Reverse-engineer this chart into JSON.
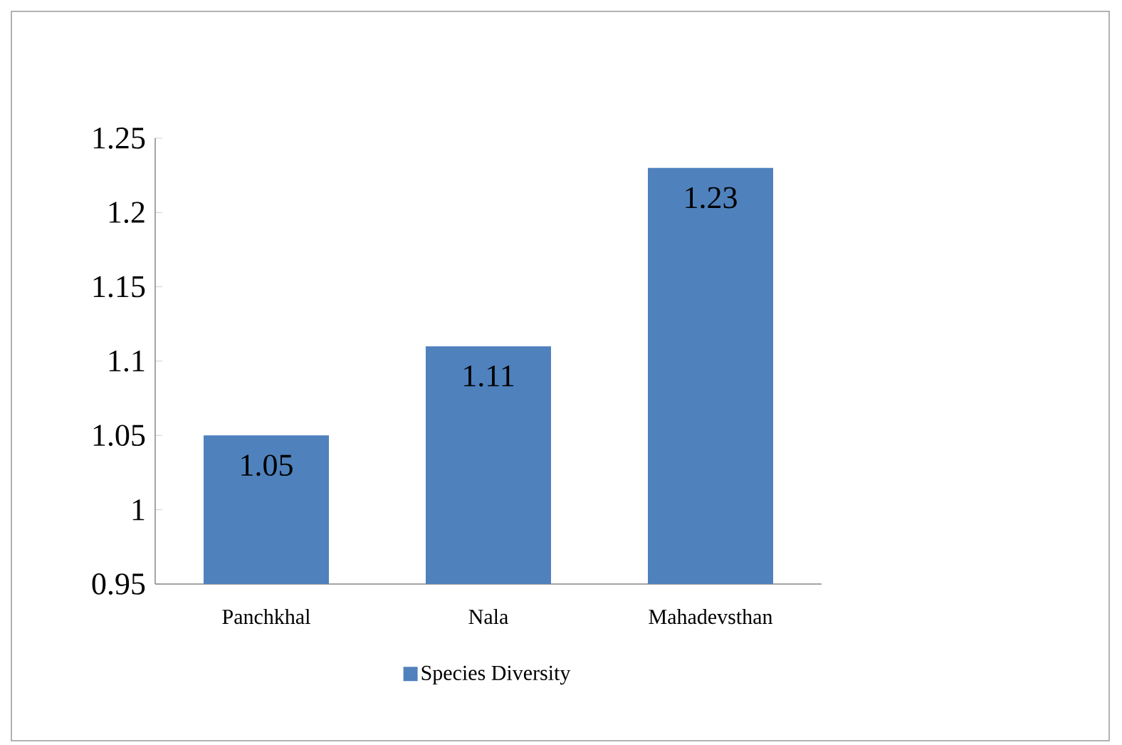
{
  "chart_data": {
    "type": "bar",
    "categories": [
      "Panchkhal",
      "Nala",
      "Mahadevsthan"
    ],
    "series": [
      {
        "name": "Species Diversity",
        "color": "#4f81bd",
        "values": [
          1.05,
          1.11,
          1.23
        ]
      }
    ],
    "ylim": [
      0.95,
      1.25
    ],
    "yticks": [
      0.95,
      1,
      1.05,
      1.1,
      1.15,
      1.2,
      1.25
    ],
    "data_labels": true,
    "legend": "bottom",
    "grid": false
  }
}
